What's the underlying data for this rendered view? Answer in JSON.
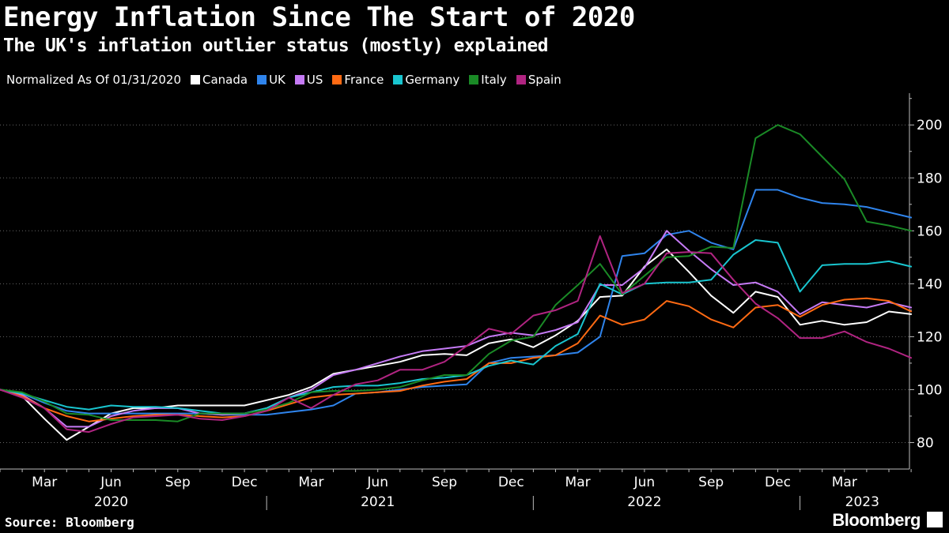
{
  "header": {
    "title": "Energy Inflation Since The Start of 2020",
    "subtitle": "The UK's inflation outlier status (mostly) explained"
  },
  "legend": {
    "note": "Normalized As Of 01/31/2020",
    "items": [
      {
        "name": "Canada",
        "color": "#ffffff"
      },
      {
        "name": "UK",
        "color": "#2f84ec"
      },
      {
        "name": "US",
        "color": "#c57af5"
      },
      {
        "name": "France",
        "color": "#ff6a13"
      },
      {
        "name": "Germany",
        "color": "#19c5cf"
      },
      {
        "name": "Italy",
        "color": "#1a8a26"
      },
      {
        "name": "Spain",
        "color": "#b02481"
      }
    ]
  },
  "footer": {
    "source": "Source: Bloomberg",
    "brand": "Bloomberg"
  },
  "chart_data": {
    "type": "line",
    "title": "Energy Inflation Since The Start of 2020",
    "subtitle": "The UK's inflation outlier status (mostly) explained",
    "xlabel": "",
    "ylabel": "Normalized As Of 01/31/2020",
    "ylim": [
      70,
      212
    ],
    "y_ticks": [
      80,
      100,
      120,
      140,
      160,
      180,
      200
    ],
    "x_start": "2020-01",
    "x_end": "2023-04",
    "month_ticks": [
      {
        "label": "Mar",
        "index": 2
      },
      {
        "label": "Jun",
        "index": 5
      },
      {
        "label": "Sep",
        "index": 8
      },
      {
        "label": "Dec",
        "index": 11
      },
      {
        "label": "Mar",
        "index": 14
      },
      {
        "label": "Jun",
        "index": 17
      },
      {
        "label": "Sep",
        "index": 20
      },
      {
        "label": "Dec",
        "index": 23
      },
      {
        "label": "Mar",
        "index": 26
      },
      {
        "label": "Jun",
        "index": 29
      },
      {
        "label": "Sep",
        "index": 32
      },
      {
        "label": "Dec",
        "index": 35
      },
      {
        "label": "Mar",
        "index": 38
      }
    ],
    "year_labels": [
      {
        "label": "2020",
        "index": 5
      },
      {
        "label": "2021",
        "index": 17
      },
      {
        "label": "2022",
        "index": 29
      },
      {
        "label": "2023",
        "index": 38.8
      }
    ],
    "year_separators": [
      12,
      24,
      36
    ],
    "series": [
      {
        "name": "Canada",
        "color": "#ffffff",
        "values": [
          100,
          97.5,
          89,
          81,
          86,
          91,
          93,
          93,
          94,
          94,
          94,
          94,
          96,
          98,
          101,
          106,
          107.5,
          109,
          110.5,
          113,
          113.5,
          113,
          117.5,
          119,
          116,
          120.5,
          126,
          135,
          135.5,
          146.5,
          153,
          144.5,
          135.5,
          129,
          137,
          135,
          124.5,
          126,
          124.5,
          125.5,
          129.5,
          128.5
        ]
      },
      {
        "name": "UK",
        "color": "#2f84ec",
        "values": [
          100,
          98.5,
          95,
          92,
          91,
          91,
          91,
          91,
          91,
          91,
          90.5,
          90.5,
          90.5,
          91.5,
          92.5,
          94,
          98.5,
          99,
          100,
          101,
          101.5,
          102,
          110,
          112,
          112.5,
          113,
          114,
          120,
          150.5,
          151.5,
          158.5,
          160,
          155.5,
          153,
          175.5,
          175.5,
          172.5,
          170.5,
          170,
          169,
          167,
          165
        ]
      },
      {
        "name": "US",
        "color": "#c57af5",
        "values": [
          100,
          98,
          93,
          86,
          86,
          90,
          92,
          93,
          93,
          91,
          90.5,
          91,
          93,
          97,
          100,
          105.5,
          107.5,
          110,
          112.5,
          114.5,
          115.5,
          116.5,
          120,
          121.5,
          120.5,
          122.5,
          125.5,
          139.5,
          139.5,
          146,
          160,
          152.5,
          145.5,
          139.5,
          140.5,
          137,
          128.5,
          133,
          132,
          131,
          133,
          131
        ]
      },
      {
        "name": "France",
        "color": "#ff6a13",
        "values": [
          100,
          97.5,
          93,
          90,
          88,
          89,
          90,
          90.5,
          90.5,
          90,
          89.5,
          90,
          92,
          94.5,
          97,
          98,
          98.5,
          99,
          99.5,
          101.5,
          103,
          104,
          110,
          110,
          112,
          113,
          117.5,
          128,
          124.5,
          126.5,
          133.5,
          131.5,
          126.5,
          123.5,
          131,
          132,
          127.5,
          132,
          134,
          134.5,
          133.5,
          129.5
        ]
      },
      {
        "name": "Germany",
        "color": "#19c5cf",
        "values": [
          100,
          98.5,
          96,
          93.5,
          92.5,
          94,
          93.5,
          93.5,
          93,
          92,
          91,
          91,
          93,
          97,
          99,
          101,
          101.5,
          101.5,
          102.5,
          104,
          104.5,
          105.5,
          109,
          111,
          109.5,
          116.5,
          121,
          140,
          136,
          140,
          140.5,
          140.5,
          141.5,
          151,
          156.5,
          155.5,
          137,
          147,
          147.5,
          147.5,
          148.5,
          146.5
        ]
      },
      {
        "name": "Italy",
        "color": "#1a8a26",
        "values": [
          100,
          99,
          95.5,
          91,
          90.5,
          88.5,
          88.5,
          88.5,
          88,
          91,
          91,
          91,
          92.5,
          95,
          99,
          99.5,
          99.5,
          100,
          101,
          103.5,
          105.5,
          105.5,
          113.5,
          118.5,
          120,
          132,
          139.5,
          147.5,
          136,
          143,
          150,
          150.5,
          154,
          153.5,
          195,
          200,
          196.5,
          188,
          179.5,
          163.5,
          162,
          160
        ]
      },
      {
        "name": "Spain",
        "color": "#b02481",
        "values": [
          100,
          97,
          93,
          85,
          84,
          87,
          89.5,
          90,
          90.5,
          89,
          88.5,
          90,
          92,
          97,
          93,
          98,
          102,
          103.5,
          107.5,
          107.5,
          110.5,
          116.5,
          123,
          121,
          128,
          130,
          133.5,
          158,
          136.5,
          140,
          151.5,
          152,
          151.5,
          141.5,
          132.5,
          127,
          119.5,
          119.5,
          122,
          118,
          115.5,
          112
        ]
      }
    ]
  }
}
